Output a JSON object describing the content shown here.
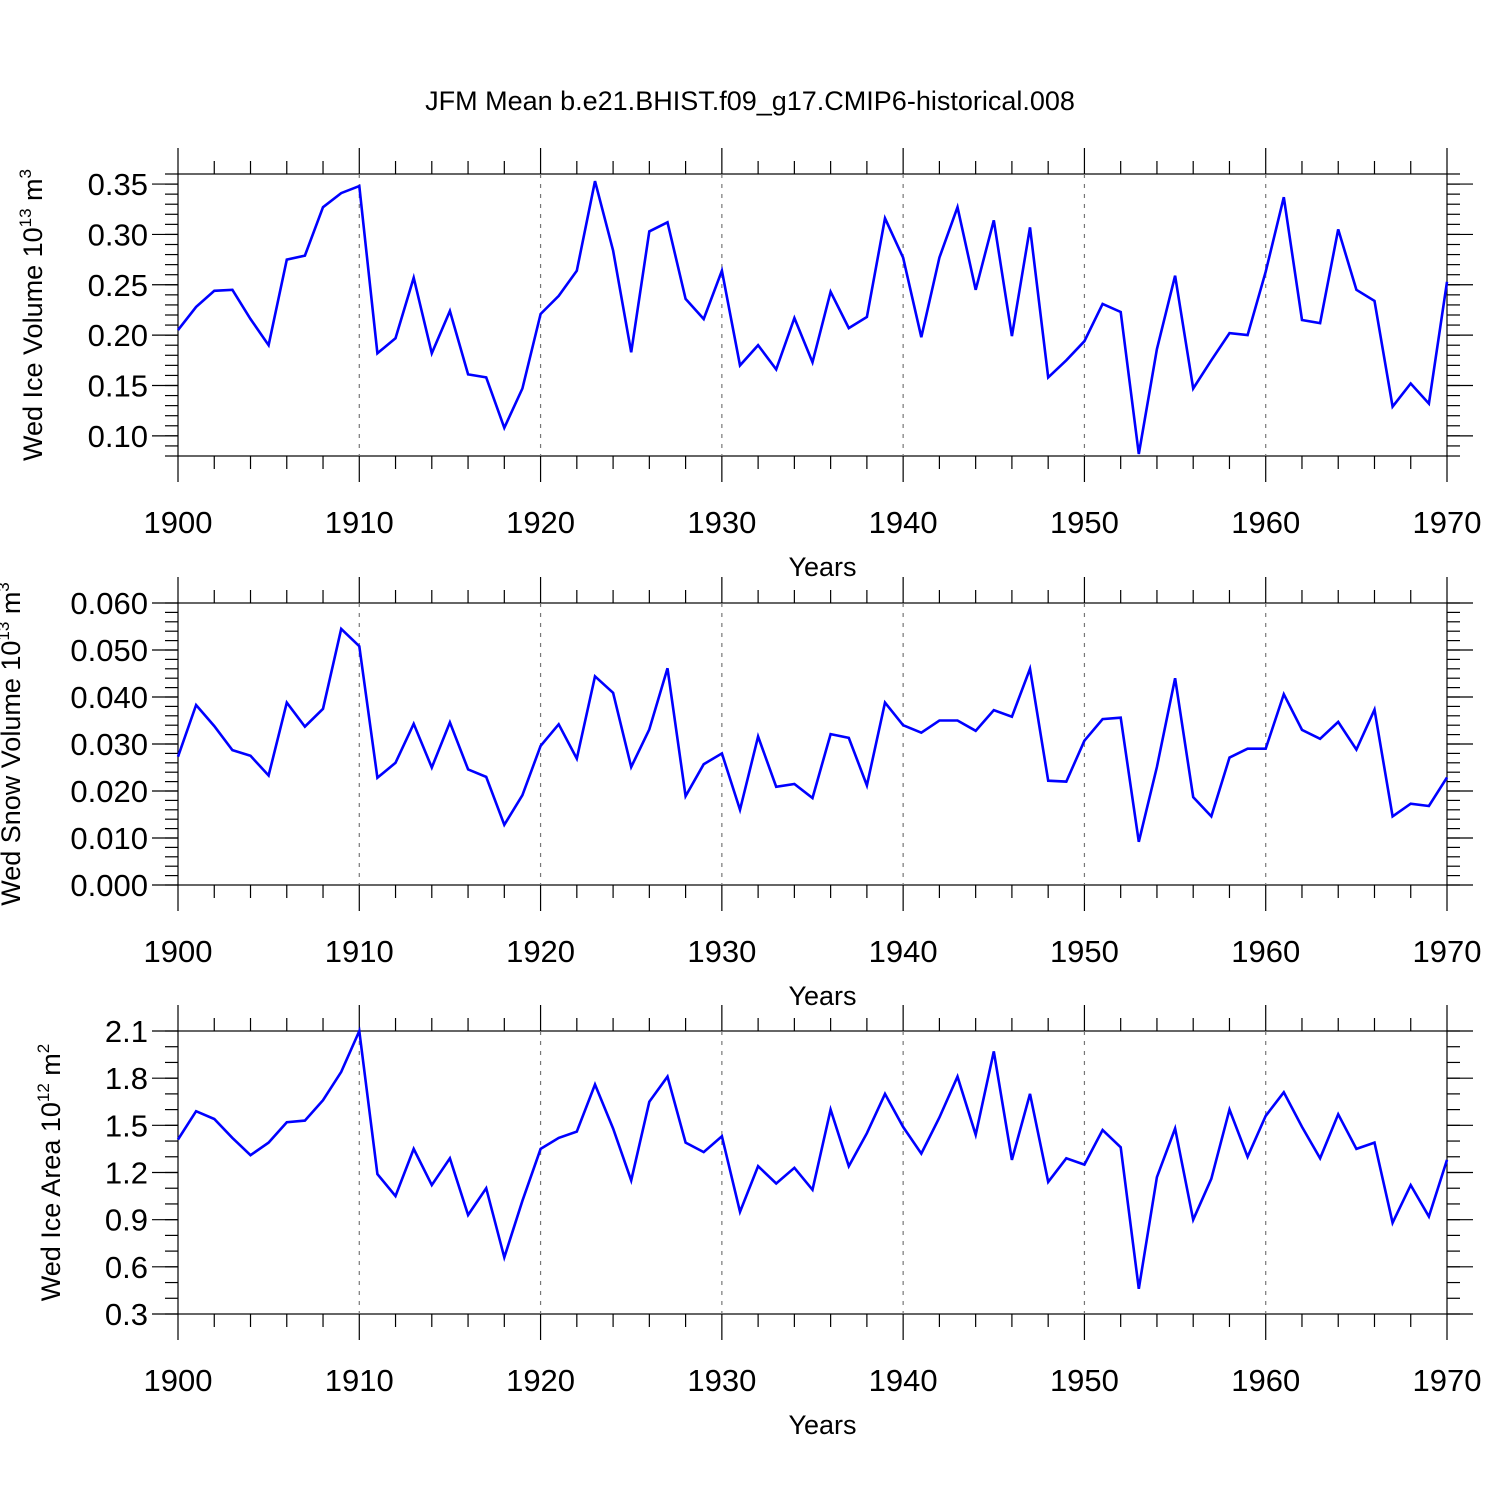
{
  "title": "JFM Mean b.e21.BHIST.f09_g17.CMIP6-historical.008",
  "colors": {
    "line": "#0000ff",
    "axis": "#000000",
    "grid": "#777777"
  },
  "chart_data": [
    {
      "type": "line",
      "title": "JFM Mean b.e21.BHIST.f09_g17.CMIP6-historical.008",
      "xlabel": "Years",
      "ylabel_base": "Wed Ice Volume 10",
      "ylabel_exp": "13",
      "ylabel_unit": " m",
      "ylabel_unit_exp": "3",
      "ylabel": "Wed Ice Volume 10^13 m^3",
      "xlim": [
        1900,
        1970
      ],
      "ylim": [
        0.08,
        0.36
      ],
      "xticks": [
        1900,
        1910,
        1920,
        1930,
        1940,
        1950,
        1960,
        1970
      ],
      "xtick_labels": [
        "1900",
        "1910",
        "1920",
        "1930",
        "1940",
        "1950",
        "1960",
        "1970"
      ],
      "yticks": [
        0.1,
        0.15,
        0.2,
        0.25,
        0.3,
        0.35
      ],
      "ytick_labels": [
        "0.10",
        "0.15",
        "0.20",
        "0.25",
        "0.30",
        "0.35"
      ],
      "y_minor_step": 0.01,
      "x": [
        1900,
        1901,
        1902,
        1903,
        1904,
        1905,
        1906,
        1907,
        1908,
        1909,
        1910,
        1911,
        1912,
        1913,
        1914,
        1915,
        1916,
        1917,
        1918,
        1919,
        1920,
        1921,
        1922,
        1923,
        1924,
        1925,
        1926,
        1927,
        1928,
        1929,
        1930,
        1931,
        1932,
        1933,
        1934,
        1935,
        1936,
        1937,
        1938,
        1939,
        1940,
        1941,
        1942,
        1943,
        1944,
        1945,
        1946,
        1947,
        1948,
        1949,
        1950,
        1951,
        1952,
        1953,
        1954,
        1955,
        1956,
        1957,
        1958,
        1959,
        1960,
        1961,
        1962,
        1963,
        1964,
        1965,
        1966,
        1967,
        1968,
        1969,
        1970
      ],
      "values": [
        0.205,
        0.228,
        0.244,
        0.245,
        0.216,
        0.19,
        0.275,
        0.279,
        0.327,
        0.341,
        0.348,
        0.182,
        0.197,
        0.257,
        0.182,
        0.224,
        0.161,
        0.158,
        0.108,
        0.147,
        0.221,
        0.239,
        0.264,
        0.353,
        0.284,
        0.183,
        0.303,
        0.312,
        0.236,
        0.216,
        0.264,
        0.17,
        0.19,
        0.166,
        0.217,
        0.173,
        0.243,
        0.207,
        0.218,
        0.316,
        0.277,
        0.198,
        0.277,
        0.327,
        0.245,
        0.314,
        0.199,
        0.307,
        0.158,
        0.175,
        0.194,
        0.231,
        0.223,
        0.082,
        0.186,
        0.259,
        0.147,
        0.175,
        0.202,
        0.2,
        0.263,
        0.337,
        0.215,
        0.212,
        0.305,
        0.245,
        0.234,
        0.129,
        0.152,
        0.132,
        0.253
      ]
    },
    {
      "type": "line",
      "title": "",
      "xlabel": "Years",
      "ylabel_base": "Wed Snow Volume 10",
      "ylabel_exp": "13",
      "ylabel_unit": " m",
      "ylabel_unit_exp": "3",
      "ylabel": "Wed Snow Volume 10^13 m^3",
      "xlim": [
        1900,
        1970
      ],
      "ylim": [
        0.0,
        0.06
      ],
      "xticks": [
        1900,
        1910,
        1920,
        1930,
        1940,
        1950,
        1960,
        1970
      ],
      "xtick_labels": [
        "1900",
        "1910",
        "1920",
        "1930",
        "1940",
        "1950",
        "1960",
        "1970"
      ],
      "yticks": [
        0.0,
        0.01,
        0.02,
        0.03,
        0.04,
        0.05,
        0.06
      ],
      "ytick_labels": [
        "0.000",
        "0.010",
        "0.020",
        "0.030",
        "0.040",
        "0.050",
        "0.060"
      ],
      "y_minor_step": 0.002,
      "x": [
        1900,
        1901,
        1902,
        1903,
        1904,
        1905,
        1906,
        1907,
        1908,
        1909,
        1910,
        1911,
        1912,
        1913,
        1914,
        1915,
        1916,
        1917,
        1918,
        1919,
        1920,
        1921,
        1922,
        1923,
        1924,
        1925,
        1926,
        1927,
        1928,
        1929,
        1930,
        1931,
        1932,
        1933,
        1934,
        1935,
        1936,
        1937,
        1938,
        1939,
        1940,
        1941,
        1942,
        1943,
        1944,
        1945,
        1946,
        1947,
        1948,
        1949,
        1950,
        1951,
        1952,
        1953,
        1954,
        1955,
        1956,
        1957,
        1958,
        1959,
        1960,
        1961,
        1962,
        1963,
        1964,
        1965,
        1966,
        1967,
        1968,
        1969,
        1970
      ],
      "values": [
        0.0273,
        0.0383,
        0.0338,
        0.0287,
        0.0275,
        0.0233,
        0.0388,
        0.0337,
        0.0375,
        0.0545,
        0.0508,
        0.0228,
        0.026,
        0.0343,
        0.025,
        0.0346,
        0.0246,
        0.023,
        0.0128,
        0.0191,
        0.0296,
        0.0342,
        0.0269,
        0.0444,
        0.0409,
        0.0251,
        0.0331,
        0.0461,
        0.0189,
        0.0257,
        0.028,
        0.016,
        0.0316,
        0.0209,
        0.0215,
        0.0185,
        0.0321,
        0.0313,
        0.0212,
        0.0388,
        0.034,
        0.0324,
        0.035,
        0.035,
        0.0328,
        0.0372,
        0.0358,
        0.046,
        0.0222,
        0.022,
        0.0307,
        0.0353,
        0.0356,
        0.0092,
        0.0251,
        0.044,
        0.0187,
        0.0146,
        0.0271,
        0.029,
        0.029,
        0.0406,
        0.033,
        0.0311,
        0.0347,
        0.0288,
        0.0373,
        0.0146,
        0.0173,
        0.0168,
        0.0229
      ]
    },
    {
      "type": "line",
      "title": "",
      "xlabel": "Years",
      "ylabel_base": "Wed Ice Area 10",
      "ylabel_exp": "12",
      "ylabel_unit": " m",
      "ylabel_unit_exp": "2",
      "ylabel": "Wed Ice Area 10^12 m^2",
      "xlim": [
        1900,
        1970
      ],
      "ylim": [
        0.3,
        2.1
      ],
      "xticks": [
        1900,
        1910,
        1920,
        1930,
        1940,
        1950,
        1960,
        1970
      ],
      "xtick_labels": [
        "1900",
        "1910",
        "1920",
        "1930",
        "1940",
        "1950",
        "1960",
        "1970"
      ],
      "yticks": [
        0.3,
        0.6,
        0.9,
        1.2,
        1.5,
        1.8,
        2.1
      ],
      "ytick_labels": [
        "0.3",
        "0.6",
        "0.9",
        "1.2",
        "1.5",
        "1.8",
        "2.1"
      ],
      "y_minor_step": 0.1,
      "x": [
        1900,
        1901,
        1902,
        1903,
        1904,
        1905,
        1906,
        1907,
        1908,
        1909,
        1910,
        1911,
        1912,
        1913,
        1914,
        1915,
        1916,
        1917,
        1918,
        1919,
        1920,
        1921,
        1922,
        1923,
        1924,
        1925,
        1926,
        1927,
        1928,
        1929,
        1930,
        1931,
        1932,
        1933,
        1934,
        1935,
        1936,
        1937,
        1938,
        1939,
        1940,
        1941,
        1942,
        1943,
        1944,
        1945,
        1946,
        1947,
        1948,
        1949,
        1950,
        1951,
        1952,
        1953,
        1954,
        1955,
        1956,
        1957,
        1958,
        1959,
        1960,
        1961,
        1962,
        1963,
        1964,
        1965,
        1966,
        1967,
        1968,
        1969,
        1970
      ],
      "values": [
        1.41,
        1.59,
        1.54,
        1.42,
        1.31,
        1.39,
        1.52,
        1.53,
        1.66,
        1.84,
        2.1,
        1.19,
        1.05,
        1.35,
        1.12,
        1.29,
        0.93,
        1.1,
        0.66,
        1.02,
        1.35,
        1.42,
        1.46,
        1.76,
        1.48,
        1.15,
        1.65,
        1.81,
        1.39,
        1.33,
        1.43,
        0.95,
        1.24,
        1.13,
        1.23,
        1.09,
        1.6,
        1.24,
        1.45,
        1.7,
        1.49,
        1.32,
        1.55,
        1.81,
        1.44,
        1.97,
        1.28,
        1.7,
        1.14,
        1.29,
        1.25,
        1.47,
        1.36,
        0.46,
        1.17,
        1.48,
        0.9,
        1.16,
        1.6,
        1.3,
        1.56,
        1.71,
        1.49,
        1.29,
        1.57,
        1.35,
        1.39,
        0.88,
        1.12,
        0.92,
        1.28
      ]
    }
  ]
}
